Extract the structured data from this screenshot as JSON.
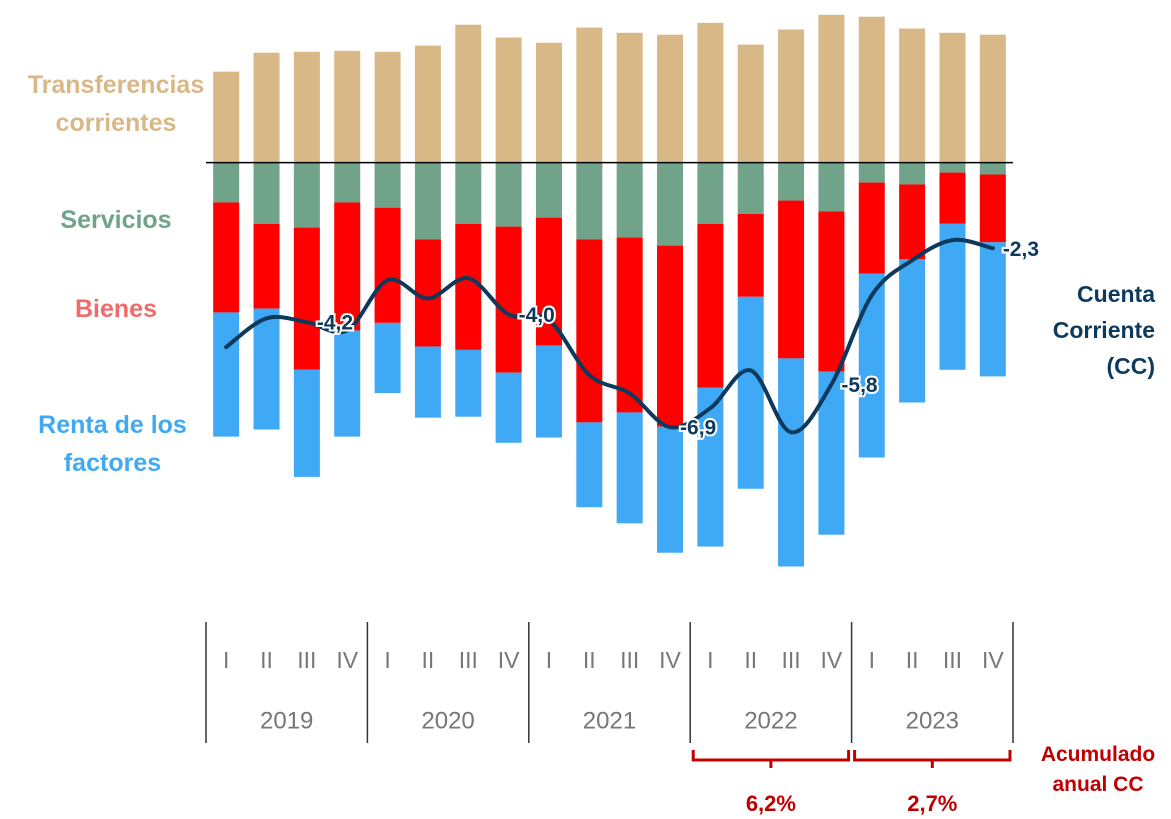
{
  "chart_data": {
    "type": "stacked_bar_line",
    "categories": [
      "I",
      "II",
      "III",
      "IV",
      "I",
      "II",
      "III",
      "IV",
      "I",
      "II",
      "III",
      "IV",
      "I",
      "II",
      "III",
      "IV",
      "I",
      "II",
      "III",
      "IV"
    ],
    "years": [
      "2019",
      "2020",
      "2021",
      "2022",
      "2023"
    ],
    "ylim": [
      -8.7,
      3.2
    ],
    "y2lim": [
      -10.7,
      3.8
    ],
    "series": [
      {
        "name": "Transferencias corrientes",
        "color": "#d9b887",
        "values": [
          1.92,
          2.32,
          2.34,
          2.36,
          2.34,
          2.47,
          2.91,
          2.64,
          2.53,
          2.85,
          2.74,
          2.7,
          2.95,
          2.49,
          2.81,
          3.12,
          3.08,
          2.83,
          2.74,
          2.7
        ]
      },
      {
        "name": "Servicios",
        "color": "#70a38a",
        "values": [
          -0.84,
          -1.29,
          -1.37,
          -0.84,
          -0.95,
          -1.62,
          -1.29,
          -1.35,
          -1.16,
          -1.62,
          -1.58,
          -1.75,
          -1.29,
          -1.08,
          -0.8,
          -1.03,
          -0.42,
          -0.46,
          -0.21,
          -0.25
        ]
      },
      {
        "name": "Bienes",
        "color": "#ff0000",
        "values": [
          -2.32,
          -1.79,
          -3.0,
          -2.7,
          -2.43,
          -2.26,
          -2.66,
          -3.08,
          -2.7,
          -3.86,
          -3.69,
          -3.82,
          -3.46,
          -1.75,
          -3.33,
          -3.38,
          -1.92,
          -1.58,
          -1.08,
          -1.43
        ]
      },
      {
        "name": "Renta de los factores",
        "color": "#3fa9f5",
        "values": [
          -2.62,
          -2.55,
          -2.26,
          -2.24,
          -1.48,
          -1.5,
          -1.41,
          -1.48,
          -1.94,
          -1.79,
          -2.34,
          -2.66,
          -3.35,
          -4.05,
          -4.39,
          -3.44,
          -3.88,
          -3.02,
          -3.08,
          -2.83
        ]
      },
      {
        "name": "Cuenta Corriente (CC)",
        "color": "#0d3a5c",
        "axis": "y2",
        "values": [
          -4.84,
          -4.1,
          -4.2,
          -4.41,
          -3.12,
          -3.59,
          -3.07,
          -4.0,
          -4.15,
          -5.56,
          -6.03,
          -6.9,
          -6.41,
          -5.44,
          -7.03,
          -5.8,
          -3.51,
          -2.61,
          -2.09,
          -2.3
        ],
        "value_labels": [
          null,
          null,
          "-4,2",
          null,
          null,
          null,
          null,
          "-4,0",
          null,
          null,
          null,
          "-6,9",
          null,
          null,
          null,
          "-5,8",
          null,
          null,
          null,
          "-2,3"
        ]
      }
    ],
    "annual_cc": {
      "label": "Acumulado anual CC",
      "color": "#c00000",
      "values": [
        6.2,
        2.7
      ],
      "value_labels": [
        "6,2%",
        "2,7%"
      ]
    }
  }
}
